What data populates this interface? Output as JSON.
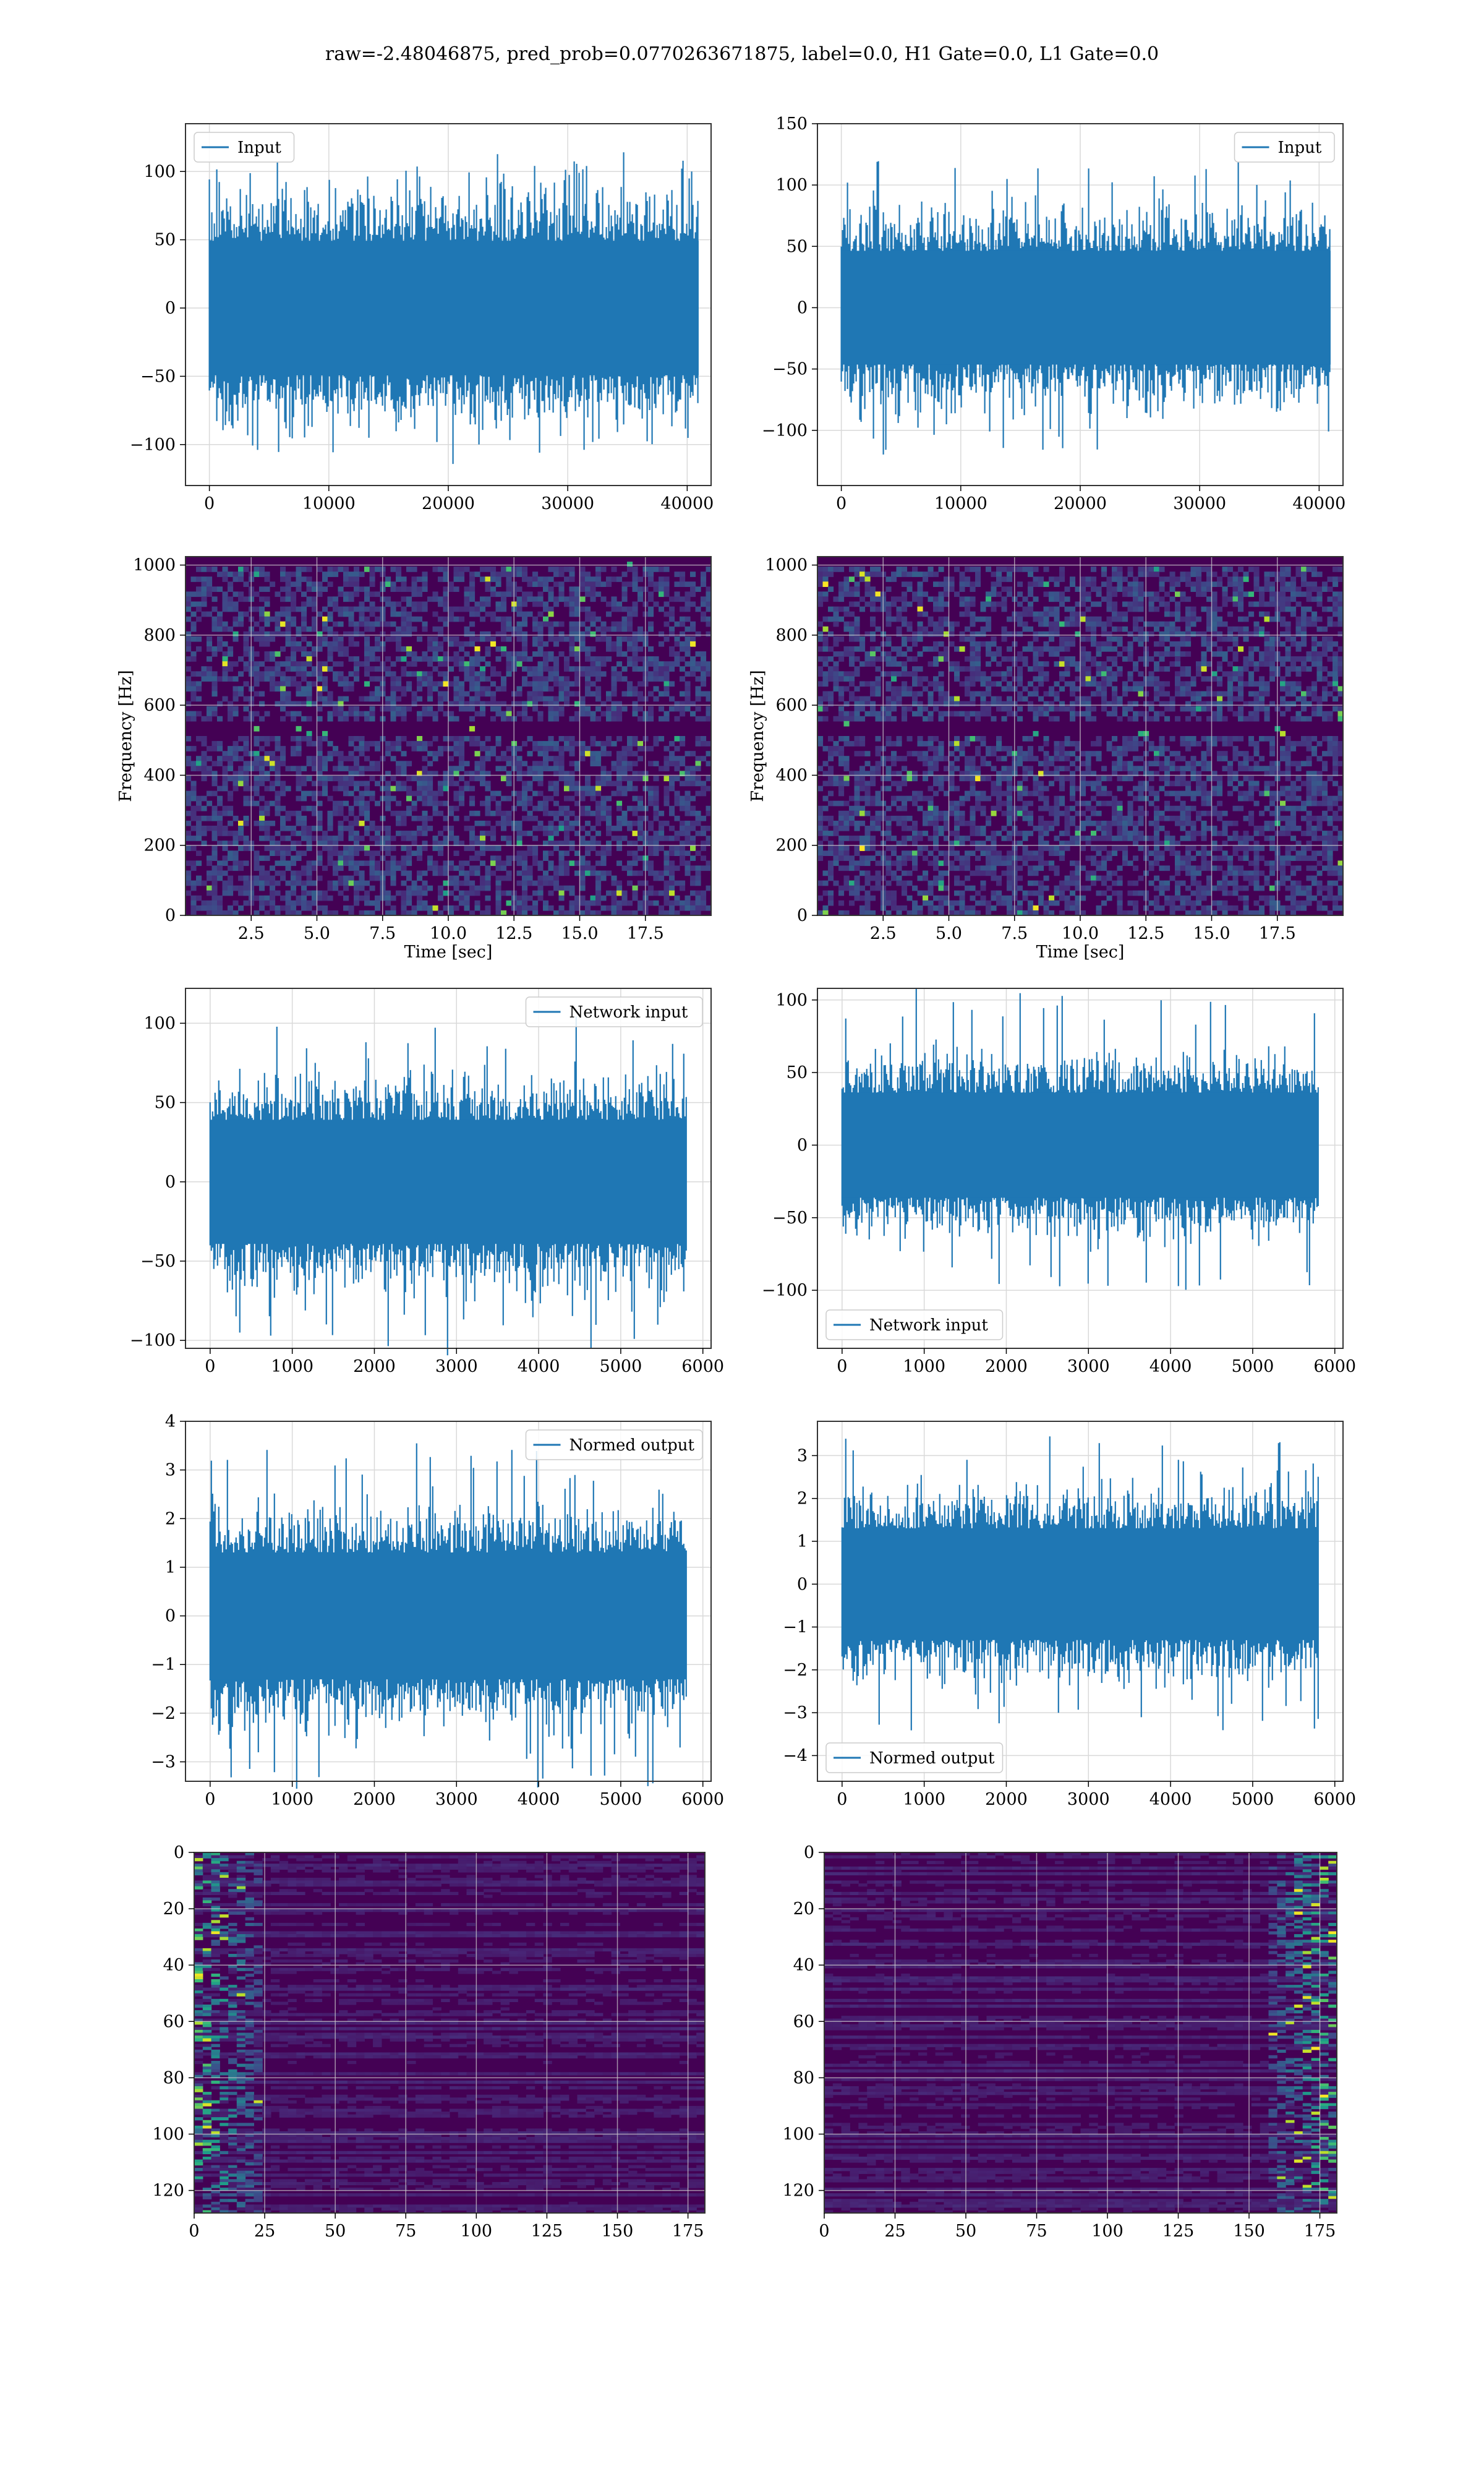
{
  "figure": {
    "suptitle": "raw=-2.48046875, pred_prob=0.0770263671875, label=0.0, H1 Gate=0.0, L1 Gate=0.0"
  },
  "colors": {
    "line": "#1f77b4",
    "grid": "#d9d9d9",
    "viridis_low": "#440154",
    "viridis_mid": "#21918c",
    "viridis_high": "#fde725"
  },
  "chart_data": [
    {
      "id": "p0",
      "type": "line",
      "series": [
        {
          "name": "Input",
          "n": 40960
        }
      ],
      "amp": 34,
      "peak": 110,
      "xlim": [
        -2000,
        42000
      ],
      "ylim": [
        -130,
        135
      ],
      "xticks": [
        0,
        10000,
        20000,
        30000,
        40000
      ],
      "yticks": [
        -100,
        -50,
        0,
        50,
        100
      ],
      "legend_loc": "upper left",
      "grid": true,
      "xlabel": "",
      "ylabel": ""
    },
    {
      "id": "p1",
      "type": "line",
      "series": [
        {
          "name": "Input",
          "n": 40960
        }
      ],
      "amp": 32,
      "peak": 120,
      "xlim": [
        -2000,
        42000
      ],
      "ylim": [
        -145,
        150
      ],
      "xticks": [
        0,
        10000,
        20000,
        30000,
        40000
      ],
      "yticks": [
        -100,
        -50,
        0,
        50,
        100,
        150
      ],
      "legend_loc": "upper right",
      "grid": true,
      "xlabel": "",
      "ylabel": ""
    },
    {
      "id": "p2",
      "type": "heatmap",
      "xlim": [
        0,
        20
      ],
      "ylim": [
        0,
        1024
      ],
      "xticks": [
        2.5,
        5.0,
        7.5,
        10.0,
        12.5,
        15.0,
        17.5
      ],
      "yticks": [
        0,
        200,
        400,
        600,
        800,
        1000
      ],
      "xlabel": "Time [sec]",
      "ylabel": "Frequency [Hz]",
      "grid": true,
      "mode": "spec"
    },
    {
      "id": "p3",
      "type": "heatmap",
      "xlim": [
        0,
        20
      ],
      "ylim": [
        0,
        1024
      ],
      "xticks": [
        2.5,
        5.0,
        7.5,
        10.0,
        12.5,
        15.0,
        17.5
      ],
      "yticks": [
        0,
        200,
        400,
        600,
        800,
        1000
      ],
      "xlabel": "Time [sec]",
      "ylabel": "Frequency [Hz]",
      "grid": true,
      "mode": "spec"
    },
    {
      "id": "p4",
      "type": "line",
      "series": [
        {
          "name": "Network input",
          "n": 5800
        }
      ],
      "amp": 27,
      "peak": 110,
      "xlim": [
        -300,
        6100
      ],
      "ylim": [
        -105,
        122
      ],
      "xticks": [
        0,
        1000,
        2000,
        3000,
        4000,
        5000,
        6000
      ],
      "yticks": [
        -100,
        -50,
        0,
        50,
        100
      ],
      "legend_loc": "upper right",
      "grid": true,
      "xlabel": "",
      "ylabel": ""
    },
    {
      "id": "p5",
      "type": "line",
      "series": [
        {
          "name": "Network input",
          "n": 5800
        }
      ],
      "amp": 25,
      "peak": 108,
      "xlim": [
        -300,
        6100
      ],
      "ylim": [
        -140,
        108
      ],
      "xticks": [
        0,
        1000,
        2000,
        3000,
        4000,
        5000,
        6000
      ],
      "yticks": [
        -100,
        -50,
        0,
        50,
        100
      ],
      "legend_loc": "lower left",
      "grid": true,
      "xlabel": "",
      "ylabel": ""
    },
    {
      "id": "p6",
      "type": "line",
      "series": [
        {
          "name": "Normed output",
          "n": 5800
        }
      ],
      "amp": 0.9,
      "peak": 3.6,
      "xlim": [
        -300,
        6100
      ],
      "ylim": [
        -3.4,
        4.0
      ],
      "xticks": [
        0,
        1000,
        2000,
        3000,
        4000,
        5000,
        6000
      ],
      "yticks": [
        -3,
        -2,
        -1,
        0,
        1,
        2,
        3,
        4
      ],
      "legend_loc": "upper right",
      "grid": true,
      "xlabel": "",
      "ylabel": ""
    },
    {
      "id": "p7",
      "type": "line",
      "series": [
        {
          "name": "Normed output",
          "n": 5800
        }
      ],
      "amp": 0.9,
      "peak": 3.5,
      "xlim": [
        -300,
        6100
      ],
      "ylim": [
        -4.6,
        3.8
      ],
      "xticks": [
        0,
        1000,
        2000,
        3000,
        4000,
        5000,
        6000
      ],
      "yticks": [
        -4,
        -3,
        -2,
        -1,
        0,
        1,
        2,
        3
      ],
      "legend_loc": "lower left",
      "grid": true,
      "xlabel": "",
      "ylabel": ""
    },
    {
      "id": "p8",
      "type": "heatmap",
      "xlim": [
        0,
        181
      ],
      "ylim": [
        128,
        0
      ],
      "xticks": [
        0,
        25,
        50,
        75,
        100,
        125,
        150,
        175
      ],
      "yticks": [
        0,
        20,
        40,
        60,
        80,
        100,
        120
      ],
      "xlabel": "",
      "ylabel": "",
      "grid": true,
      "mode": "feat_left"
    },
    {
      "id": "p9",
      "type": "heatmap",
      "xlim": [
        0,
        181
      ],
      "ylim": [
        128,
        0
      ],
      "xticks": [
        0,
        25,
        50,
        75,
        100,
        125,
        150,
        175
      ],
      "yticks": [
        0,
        20,
        40,
        60,
        80,
        100,
        120
      ],
      "xlabel": "",
      "ylabel": "",
      "grid": true,
      "mode": "feat_right"
    }
  ]
}
